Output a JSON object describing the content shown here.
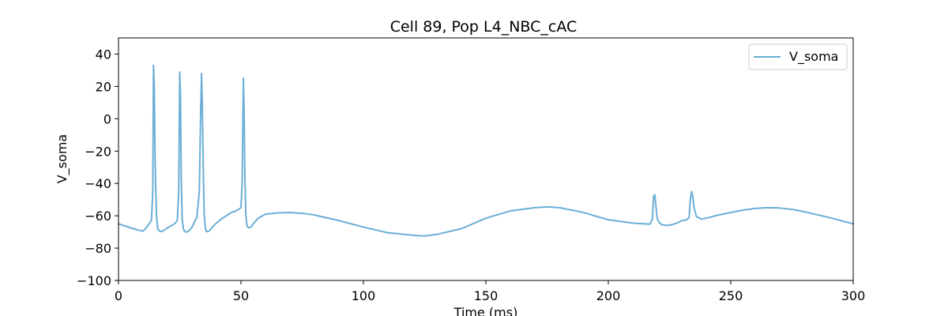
{
  "chart_data": {
    "type": "line",
    "title": "Cell 89, Pop L4_NBC_cAC",
    "xlabel": "Time (ms)",
    "ylabel": "V_soma",
    "xlim": [
      0,
      300
    ],
    "ylim": [
      -100,
      50
    ],
    "x_ticks": [
      0,
      50,
      100,
      150,
      200,
      250,
      300
    ],
    "y_ticks": [
      -100,
      -80,
      -60,
      -40,
      -20,
      0,
      20,
      40
    ],
    "grid": false,
    "legend_position": "top-right",
    "series": [
      {
        "name": "V_soma",
        "color": "#6baed6",
        "x": [
          0,
          3,
          6,
          9,
          10,
          11,
          12,
          13,
          13.5,
          14,
          14.3,
          14.6,
          15,
          15.5,
          16,
          17,
          18,
          19,
          20,
          21,
          22,
          23,
          24,
          24.6,
          25,
          25.3,
          25.6,
          26,
          26.5,
          27,
          28,
          29,
          30,
          31,
          32,
          33,
          33.5,
          33.9,
          34.2,
          34.6,
          35,
          35.5,
          36,
          37,
          38,
          40,
          42,
          44,
          46,
          48,
          50,
          50.5,
          51,
          51.3,
          51.6,
          52,
          52.5,
          53,
          54,
          55,
          57,
          60,
          65,
          70,
          75,
          80,
          90,
          100,
          110,
          120,
          125,
          130,
          140,
          150,
          160,
          170,
          175,
          180,
          190,
          200,
          205,
          210,
          215,
          217,
          218,
          218.5,
          219,
          219.5,
          220,
          221,
          222,
          224,
          226,
          228,
          230,
          232,
          233,
          233.5,
          234,
          234.5,
          235,
          236,
          238,
          240,
          245,
          250,
          255,
          260,
          265,
          270,
          275,
          280,
          290,
          300
        ],
        "values": [
          -65,
          -66.5,
          -68,
          -69.2,
          -69.5,
          -68,
          -66,
          -64,
          -62,
          -45,
          33,
          20,
          -30,
          -60,
          -68,
          -69.8,
          -69.5,
          -68.5,
          -67.5,
          -66.5,
          -65.8,
          -64.8,
          -63,
          -45,
          29,
          15,
          -35,
          -62,
          -68,
          -69.8,
          -70,
          -69,
          -67,
          -64,
          -61,
          -45,
          0,
          28,
          10,
          -30,
          -60,
          -68,
          -69.8,
          -69.5,
          -67.5,
          -64.5,
          -62,
          -60,
          -58,
          -57,
          -55,
          -40,
          25,
          5,
          -35,
          -60,
          -66.5,
          -67.3,
          -67,
          -65,
          -61.5,
          -59,
          -58.2,
          -58,
          -58.5,
          -59.5,
          -63,
          -67,
          -70.5,
          -72,
          -72.5,
          -71.5,
          -68,
          -61.5,
          -57,
          -55,
          -54.5,
          -55,
          -58,
          -62.5,
          -63.5,
          -64.5,
          -65,
          -65.2,
          -62,
          -48,
          -47,
          -55,
          -62,
          -64.5,
          -65.6,
          -66,
          -65.5,
          -64.5,
          -63,
          -62.5,
          -61,
          -50,
          -45,
          -48,
          -55,
          -60.5,
          -62,
          -61.5,
          -59.5,
          -58,
          -56.5,
          -55.5,
          -55,
          -55.2,
          -56,
          -57.5,
          -61,
          -65
        ]
      }
    ]
  }
}
